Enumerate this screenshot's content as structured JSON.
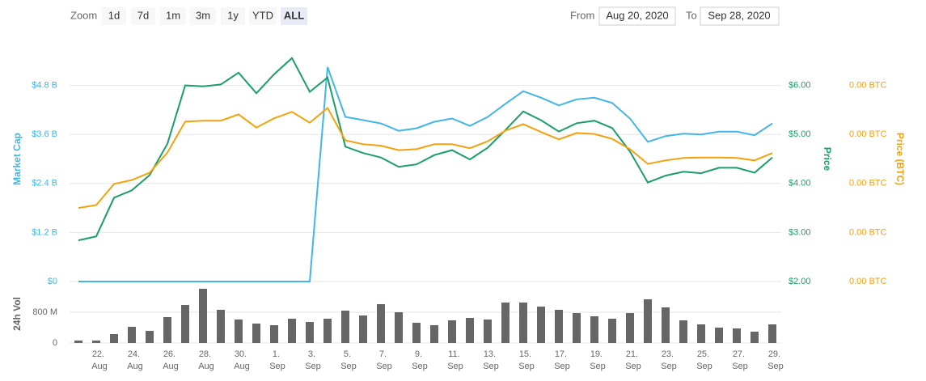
{
  "toolbar": {
    "zoom_label": "Zoom",
    "buttons": [
      "1d",
      "7d",
      "1m",
      "3m",
      "1y",
      "YTD",
      "ALL"
    ],
    "active": "ALL",
    "from_label": "From",
    "from": "Aug 20, 2020",
    "to_label": "To",
    "to": "Sep 28, 2020"
  },
  "chart_data": [
    {
      "type": "line",
      "ylabel": "Market Cap",
      "y2label": "Price",
      "y3label": "Price (BTC)",
      "ylim": [
        0,
        6
      ],
      "yticks": [
        {
          "value": 0,
          "label": "$0"
        },
        {
          "value": 1.2,
          "label": "$1.2 B"
        },
        {
          "value": 2.4,
          "label": "$2.4 B"
        },
        {
          "value": 3.6,
          "label": "$3.6 B"
        },
        {
          "value": 4.8,
          "label": "$4.8 B"
        }
      ],
      "y2lim": [
        2,
        7
      ],
      "y2ticks": [
        {
          "value": 2,
          "label": "$2.00"
        },
        {
          "value": 3,
          "label": "$3.00"
        },
        {
          "value": 4,
          "label": "$4.00"
        },
        {
          "value": 5,
          "label": "$5.00"
        },
        {
          "value": 6,
          "label": "$6.00"
        }
      ],
      "y3lim": [
        0,
        0.0005
      ],
      "y3ticks": [
        {
          "value": 0,
          "label": "0.00 BTC"
        },
        {
          "value": 0.0001,
          "label": "0.00 BTC"
        },
        {
          "value": 0.0002,
          "label": "0.00 BTC"
        },
        {
          "value": 0.0003,
          "label": "0.00 BTC"
        },
        {
          "value": 0.0004,
          "label": "0.00 BTC"
        }
      ],
      "grid": true,
      "series": [
        {
          "name": "Market Cap",
          "color": "#43b5e8",
          "axis": "y",
          "values": [
            0,
            0,
            0,
            0,
            0,
            0,
            0,
            0,
            0,
            0,
            0,
            0,
            0,
            0,
            5.25,
            4.03,
            3.95,
            3.87,
            3.69,
            3.75,
            3.91,
            3.99,
            3.81,
            4.03,
            4.35,
            4.66,
            4.5,
            4.31,
            4.46,
            4.5,
            4.37,
            3.99,
            3.42,
            3.56,
            3.62,
            3.6,
            3.67,
            3.67,
            3.58,
            3.87
          ]
        },
        {
          "name": "Price",
          "color": "#1a9e6a",
          "axis": "y2",
          "values": [
            2.84,
            2.92,
            3.71,
            3.86,
            4.17,
            4.81,
            6.0,
            5.98,
            6.02,
            6.26,
            5.84,
            6.23,
            6.56,
            5.87,
            6.16,
            4.75,
            4.62,
            4.53,
            4.34,
            4.39,
            4.58,
            4.68,
            4.49,
            4.73,
            5.09,
            5.47,
            5.29,
            5.06,
            5.23,
            5.28,
            5.13,
            4.65,
            4.02,
            4.16,
            4.24,
            4.21,
            4.32,
            4.32,
            4.22,
            4.53
          ]
        },
        {
          "name": "Price (BTC)",
          "color": "#f5a10d",
          "axis": "y3",
          "values": [
            0.00015,
            0.000156,
            0.000199,
            0.000207,
            0.000222,
            0.000263,
            0.000326,
            0.000328,
            0.000328,
            0.000341,
            0.000314,
            0.000333,
            0.000346,
            0.000324,
            0.000354,
            0.000288,
            0.00028,
            0.000277,
            0.000268,
            0.00027,
            0.00028,
            0.00028,
            0.000272,
            0.000286,
            0.000308,
            0.000321,
            0.000305,
            0.00029,
            0.000303,
            0.000301,
            0.000291,
            0.00027,
            0.00024,
            0.000247,
            0.000252,
            0.000253,
            0.000253,
            0.000252,
            0.000247,
            0.000262
          ]
        }
      ]
    },
    {
      "type": "bar",
      "ylabel": "24h Vol",
      "color": "#666666",
      "ylim": [
        0,
        1600
      ],
      "yticks": [
        0,
        {
          "value": 800,
          "label": "800 M"
        }
      ],
      "grid": true,
      "categories": [
        null,
        "22. Aug",
        null,
        "24. Aug",
        null,
        "26. Aug",
        null,
        "28. Aug",
        null,
        "30. Aug",
        null,
        "1. Sep",
        null,
        "3. Sep",
        null,
        "5. Sep",
        null,
        "7. Sep",
        null,
        "9. Sep",
        null,
        "11. Sep",
        null,
        "13. Sep",
        null,
        "15. Sep",
        null,
        "17. Sep",
        null,
        "19. Sep",
        null,
        "21. Sep",
        null,
        "23. Sep",
        null,
        "25. Sep",
        null,
        "27. Sep",
        null,
        "29. Sep"
      ],
      "values": [
        63,
        63,
        232,
        421,
        316,
        674,
        989,
        1411,
        863,
        611,
        505,
        463,
        632,
        547,
        632,
        842,
        716,
        1011,
        800,
        526,
        463,
        589,
        653,
        611,
        1053,
        1053,
        947,
        863,
        779,
        695,
        632,
        779,
        1137,
        926,
        589,
        484,
        400,
        379,
        295,
        484
      ]
    }
  ]
}
